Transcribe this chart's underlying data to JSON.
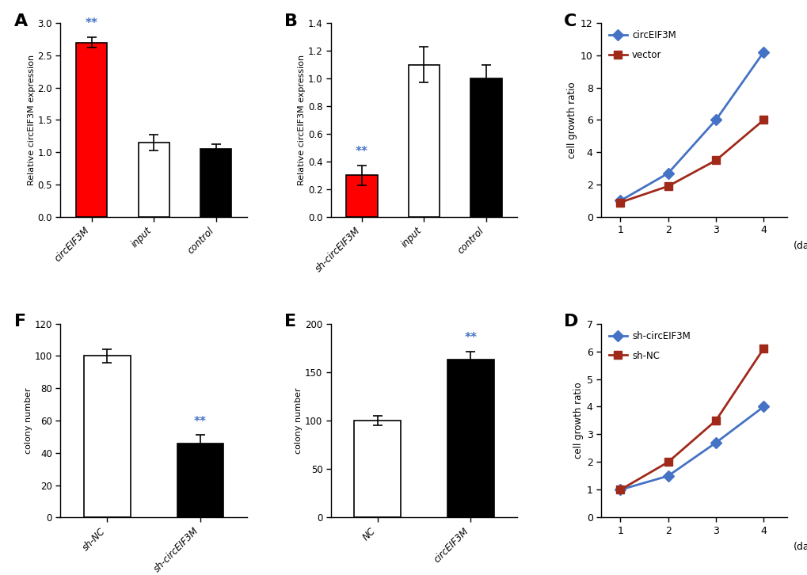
{
  "A": {
    "categories": [
      "circEIF3M",
      "input",
      "control"
    ],
    "values": [
      2.7,
      1.15,
      1.05
    ],
    "errors": [
      0.08,
      0.12,
      0.08
    ],
    "colors": [
      "#ff0000",
      "#ffffff",
      "#000000"
    ],
    "edgecolors": [
      "#000000",
      "#000000",
      "#000000"
    ],
    "ylabel": "Relative circEIF3M expression",
    "ylim": [
      0,
      3
    ],
    "yticks": [
      0,
      0.5,
      1.0,
      1.5,
      2.0,
      2.5,
      3.0
    ],
    "sig_bar": 0,
    "sig_text": "**",
    "label": "A"
  },
  "B": {
    "categories": [
      "sh-circEIF3M",
      "input",
      "control"
    ],
    "values": [
      0.3,
      1.1,
      1.0
    ],
    "errors": [
      0.07,
      0.13,
      0.1
    ],
    "colors": [
      "#ff0000",
      "#ffffff",
      "#000000"
    ],
    "edgecolors": [
      "#000000",
      "#000000",
      "#000000"
    ],
    "ylabel": "Relative circEIF3M expression",
    "ylim": [
      0,
      1.4
    ],
    "yticks": [
      0,
      0.2,
      0.4,
      0.6,
      0.8,
      1.0,
      1.2,
      1.4
    ],
    "sig_bar": 0,
    "sig_text": "**",
    "label": "B"
  },
  "C": {
    "x": [
      1,
      2,
      3,
      4
    ],
    "lines": [
      {
        "label": "circEIF3M",
        "values": [
          1.0,
          2.7,
          6.0,
          10.2
        ],
        "color": "#4472c4",
        "marker": "D"
      },
      {
        "label": "vector",
        "values": [
          0.9,
          1.9,
          3.5,
          6.0
        ],
        "color": "#a0291a",
        "marker": "s"
      }
    ],
    "day_label": "(day)",
    "ylabel": "cell growth ratio",
    "ylim": [
      0,
      12
    ],
    "yticks": [
      0,
      2,
      4,
      6,
      8,
      10,
      12
    ],
    "xticks": [
      1,
      2,
      3,
      4
    ],
    "label": "C"
  },
  "D": {
    "x": [
      1,
      2,
      3,
      4
    ],
    "lines": [
      {
        "label": "sh-circEIF3M",
        "values": [
          1.0,
          1.5,
          2.7,
          4.0
        ],
        "color": "#4472c4",
        "marker": "D"
      },
      {
        "label": "sh-NC",
        "values": [
          1.0,
          2.0,
          3.5,
          6.1
        ],
        "color": "#a0291a",
        "marker": "s"
      }
    ],
    "day_label": "(day)",
    "ylabel": "cell growth ratio",
    "ylim": [
      0,
      7
    ],
    "yticks": [
      0,
      1,
      2,
      3,
      4,
      5,
      6,
      7
    ],
    "xticks": [
      1,
      2,
      3,
      4
    ],
    "label": "D"
  },
  "E": {
    "categories": [
      "NC",
      "circEIF3M"
    ],
    "values": [
      100,
      163
    ],
    "errors": [
      5,
      8
    ],
    "colors": [
      "#ffffff",
      "#000000"
    ],
    "edgecolors": [
      "#000000",
      "#000000"
    ],
    "ylabel": "colony number",
    "ylim": [
      0,
      200
    ],
    "yticks": [
      0,
      50,
      100,
      150,
      200
    ],
    "sig_bar": 1,
    "sig_text": "**",
    "label": "E"
  },
  "F": {
    "categories": [
      "sh-NC",
      "sh-circEIF3M"
    ],
    "values": [
      100,
      46
    ],
    "errors": [
      4,
      5
    ],
    "colors": [
      "#ffffff",
      "#000000"
    ],
    "edgecolors": [
      "#000000",
      "#000000"
    ],
    "ylabel": "colony number",
    "ylim": [
      0,
      120
    ],
    "yticks": [
      0,
      20,
      40,
      60,
      80,
      100,
      120
    ],
    "sig_bar": 1,
    "sig_text": "**",
    "label": "F"
  },
  "bg_color": "#ffffff",
  "panel_bg": "#ffffff",
  "sig_color": "#4472c4"
}
